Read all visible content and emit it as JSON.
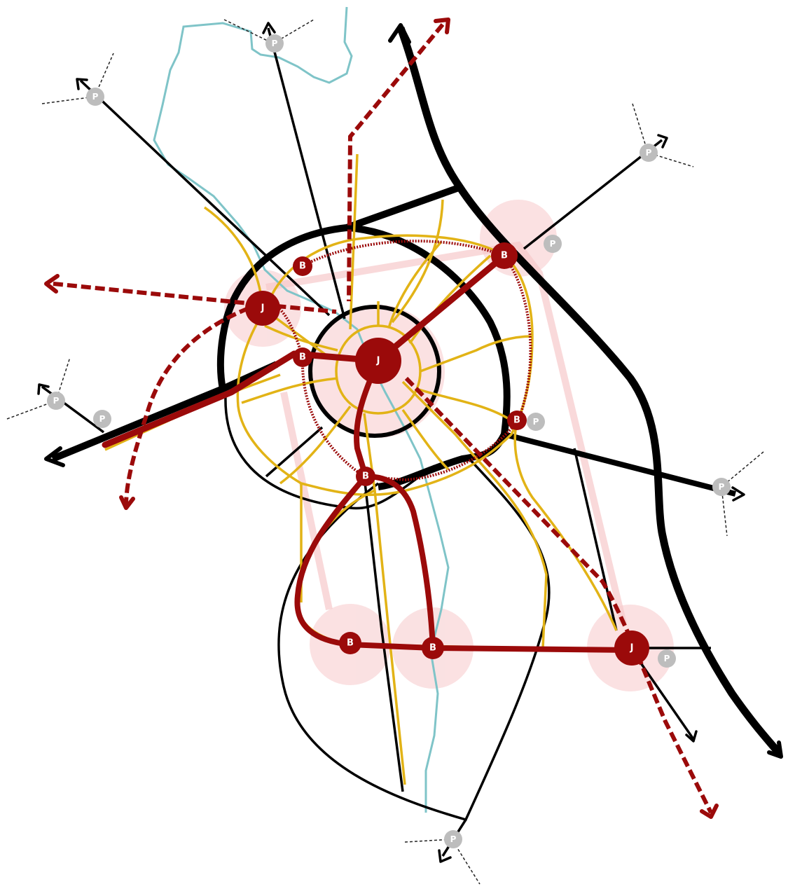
{
  "colors": {
    "road": "#000000",
    "rail": "#9b0a0a",
    "bus": "#e2b316",
    "river": "#7fc4c8",
    "catchment": "#f7c9cb",
    "parking": "#bdbdbd",
    "label": "#ffffff"
  },
  "labels": {
    "junction": "J",
    "bus_station": "B",
    "parking": "P"
  }
}
